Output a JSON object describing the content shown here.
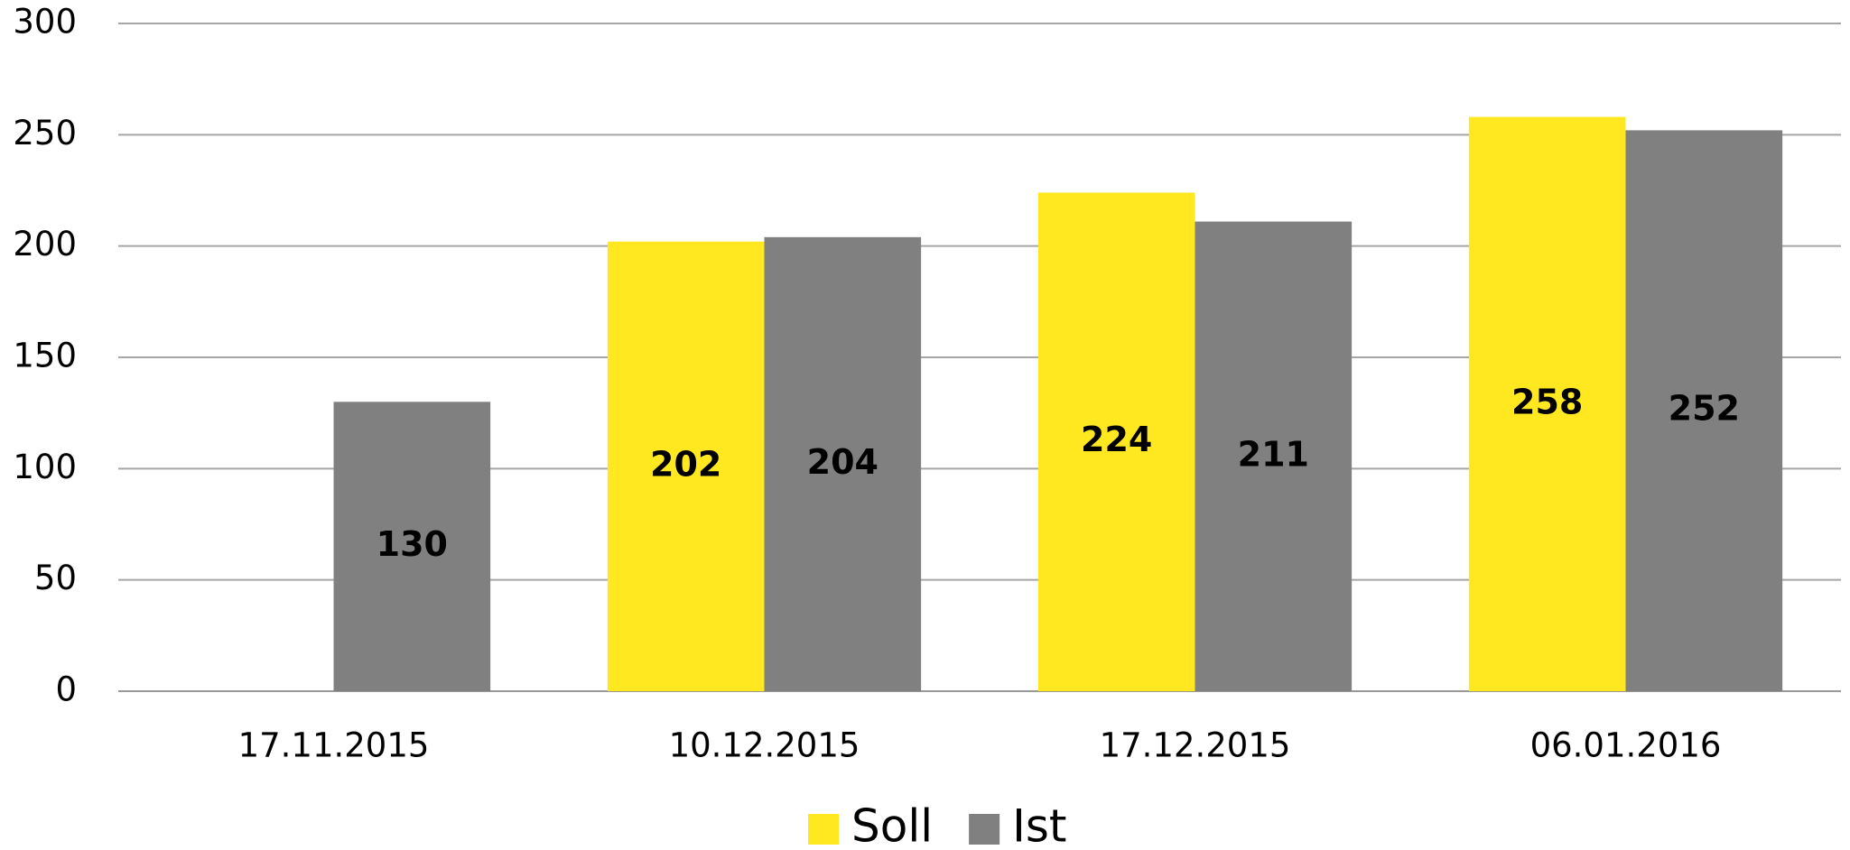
{
  "chart_data": {
    "type": "bar",
    "categories": [
      "17.11.2015",
      "10.12.2015",
      "17.12.2015",
      "06.01.2016"
    ],
    "series": [
      {
        "name": "Soll",
        "color": "#ffe81f",
        "values": [
          null,
          202,
          224,
          258
        ]
      },
      {
        "name": "Ist",
        "color": "#808080",
        "values": [
          130,
          204,
          211,
          252
        ]
      }
    ],
    "ylim": [
      0,
      300
    ],
    "yticks": [
      0,
      50,
      100,
      150,
      200,
      250,
      300
    ],
    "grid": true,
    "legend": "bottom"
  }
}
